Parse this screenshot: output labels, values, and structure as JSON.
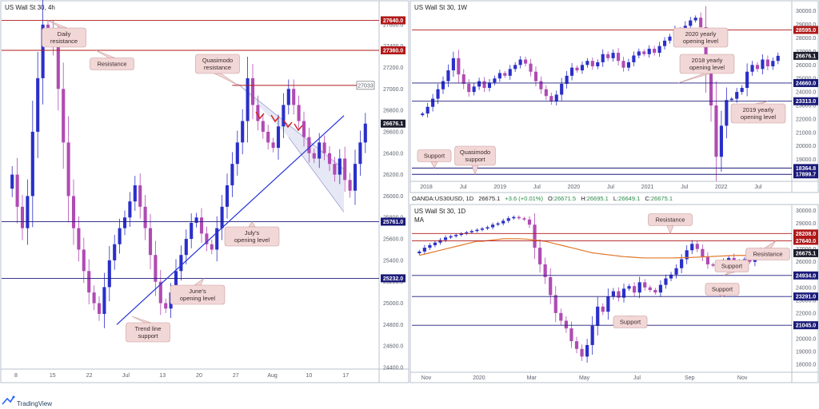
{
  "colors": {
    "up_candle": "#2a2fc9",
    "down_candle": "#b04bb3",
    "resistance_line": "#b01818",
    "support_line": "#1a1a7a",
    "trend_line": "#2432d8",
    "ma_line": "#e0782b",
    "callout_fill": "#f2d7d7",
    "callout_stroke": "#c99a9a",
    "tag_red": "#b01818",
    "tag_navy": "#1a1a7a",
    "tag_black": "#1c1c2c",
    "channel_fill": "#c9cde9",
    "arrow_red": "#d22020"
  },
  "footer": {
    "brand": "TradingView",
    "logo_icon": "tradingview-logo-icon"
  },
  "chart_data": [
    {
      "id": "h4",
      "type": "candlestick",
      "title": "US Wall St 30, 4h",
      "y_ticks": [
        27600,
        27400,
        27200,
        27000,
        26800,
        26600,
        26400,
        26200,
        26000,
        25800,
        25600,
        25400,
        25200,
        25000,
        24800,
        24600,
        24400
      ],
      "ylim": [
        24400,
        27800
      ],
      "x_ticks": [
        "8",
        "15",
        "22",
        "Jul",
        "13",
        "20",
        "27",
        "Aug",
        "10",
        "17"
      ],
      "levels": [
        {
          "value": 27640.0,
          "label": "27640.0",
          "style": "resistance"
        },
        {
          "value": 27360.0,
          "label": "27360.0",
          "style": "resistance"
        },
        {
          "value": 27033,
          "label": "27033",
          "style": "resistance-short"
        },
        {
          "value": 26676.1,
          "label": "26676.1",
          "style": "price"
        },
        {
          "value": 25761.0,
          "label": "25761.0",
          "style": "support"
        },
        {
          "value": 25232.0,
          "label": "25232.0",
          "style": "support"
        }
      ],
      "annotations": [
        "Daily resistance",
        "Resistance",
        "Quasimodo resistance",
        "July's opening level",
        "June's opening level",
        "Trend line support"
      ],
      "closes": [
        26200,
        25900,
        25700,
        26000,
        26600,
        27100,
        27600,
        27550,
        27400,
        27000,
        26500,
        26000,
        25700,
        25500,
        25300,
        25100,
        25000,
        24900,
        25150,
        25400,
        25550,
        25700,
        25800,
        25950,
        26100,
        25900,
        25700,
        25450,
        25200,
        25000,
        24950,
        25100,
        25300,
        25450,
        25600,
        25750,
        25800,
        25650,
        25550,
        25500,
        25700,
        25900,
        26100,
        26300,
        26500,
        26700,
        27100,
        26850,
        26700,
        26600,
        26500,
        26450,
        26650,
        26850,
        27000,
        26850,
        26700,
        26550,
        26400,
        26350,
        26500,
        26400,
        26300,
        26200,
        26350,
        26150,
        26050,
        26300,
        26500,
        26676
      ]
    },
    {
      "id": "w1",
      "type": "candlestick",
      "title": "US Wall St 30, 1W",
      "y_ticks": [
        30000,
        29000,
        28000,
        27000,
        26000,
        25000,
        24000,
        23000,
        22000,
        21000,
        20000,
        19000,
        18000
      ],
      "ylim": [
        17500,
        30100
      ],
      "x_ticks": [
        "2018",
        "Jul",
        "2019",
        "Jul",
        "2020",
        "Jul",
        "2021",
        "Jul",
        "2022",
        "Jul"
      ],
      "levels": [
        {
          "value": 28595.0,
          "label": "28595.0",
          "style": "resistance"
        },
        {
          "value": 26676.1,
          "label": "26676.1",
          "style": "price"
        },
        {
          "value": 24660.0,
          "label": "24660.0",
          "style": "support"
        },
        {
          "value": 23313.0,
          "label": "23313.0",
          "style": "support"
        },
        {
          "value": 18364.8,
          "label": "18364.8",
          "style": "support"
        },
        {
          "value": 17899.7,
          "label": "17899.7",
          "style": "support"
        }
      ],
      "annotations": [
        "2020 yearly opening level",
        "2018 yearly opening level",
        "2019 yearly opening level",
        "Support",
        "Quasimodo support"
      ],
      "closes": [
        22400,
        22900,
        23500,
        24200,
        24800,
        25600,
        26500,
        25300,
        24600,
        24000,
        24400,
        24800,
        24300,
        24700,
        25000,
        25400,
        25200,
        25700,
        26000,
        26400,
        26100,
        25500,
        24800,
        24200,
        23700,
        23300,
        23800,
        24600,
        25200,
        25800,
        25600,
        26000,
        26300,
        25900,
        26200,
        26800,
        26500,
        26900,
        26300,
        25800,
        26200,
        26700,
        27000,
        26800,
        27200,
        26900,
        27400,
        27800,
        28100,
        28600,
        28300,
        28900,
        29300,
        29500,
        28800,
        25500,
        23000,
        19200,
        21500,
        23400,
        23500,
        24000,
        24300,
        25500,
        26000,
        25700,
        26400,
        25900,
        26300,
        26676
      ]
    },
    {
      "id": "d1",
      "type": "candlestick",
      "title": "US Wall St 30, 1D",
      "info_bar": {
        "symbol": "OANDA:US30USD, 1D",
        "last": "26675.1",
        "change": "+3.6 (+0.01%)",
        "O": "26671.5",
        "H": "26695.1",
        "L": "26649.1",
        "C": "26675.1"
      },
      "indicator_label": "MA",
      "y_ticks": [
        30000,
        29000,
        28000,
        27000,
        26000,
        25000,
        24000,
        23000,
        22000,
        21000,
        20000,
        19000,
        18000
      ],
      "ylim": [
        17500,
        30100
      ],
      "x_ticks": [
        "Nov",
        "2020",
        "Mar",
        "May",
        "Jul",
        "Sep",
        "Nov"
      ],
      "levels": [
        {
          "value": 28208.0,
          "label": "28208.0",
          "style": "resistance"
        },
        {
          "value": 27640.0,
          "label": "27640.0",
          "style": "resistance"
        },
        {
          "value": 26675.1,
          "label": "26675.1",
          "style": "price"
        },
        {
          "value": 24934.0,
          "label": "24934.0",
          "style": "support"
        },
        {
          "value": 23291.0,
          "label": "23291.0",
          "style": "support"
        },
        {
          "value": 21045.0,
          "label": "21045.0",
          "style": "support"
        }
      ],
      "annotations": [
        "Resistance",
        "Resistance",
        "Support",
        "Support",
        "Support"
      ],
      "closes": [
        26800,
        27100,
        27300,
        27500,
        27700,
        27900,
        28000,
        28100,
        28200,
        28300,
        28400,
        28500,
        28600,
        28700,
        28900,
        29000,
        29200,
        29400,
        29500,
        29400,
        29300,
        28900,
        27100,
        25800,
        24800,
        23400,
        22000,
        21400,
        20800,
        19800,
        19200,
        18600,
        19500,
        21000,
        22500,
        22100,
        23300,
        23700,
        23200,
        23900,
        24100,
        23600,
        24400,
        24000,
        23800,
        23600,
        24200,
        24700,
        25000,
        25500,
        26200,
        26900,
        27400,
        27000,
        26400,
        25800,
        25700,
        25900,
        26100,
        26300,
        25700,
        26000,
        26200,
        26000,
        26600,
        26900,
        26700,
        26800,
        26900,
        26675
      ],
      "ma_values": [
        26500,
        26600,
        26700,
        26800,
        26900,
        27000,
        27100,
        27200,
        27300,
        27400,
        27500,
        27600,
        27600,
        27650,
        27700,
        27750,
        27800,
        27800,
        27800,
        27800,
        27780,
        27750,
        27700,
        27650,
        27600,
        27500,
        27400,
        27300,
        27200,
        27100,
        27000,
        26900,
        26800,
        26700,
        26650,
        26600,
        26550,
        26500,
        26450,
        26400,
        26380,
        26350,
        26320,
        26300,
        26300,
        26300,
        26300,
        26300,
        26300,
        26310,
        26320,
        26330,
        26340,
        26360,
        26380,
        26400,
        26420,
        26440,
        26460,
        26480,
        26490,
        26500,
        26500,
        26500,
        26510,
        26520,
        26530,
        26540,
        26560,
        26580
      ]
    }
  ]
}
